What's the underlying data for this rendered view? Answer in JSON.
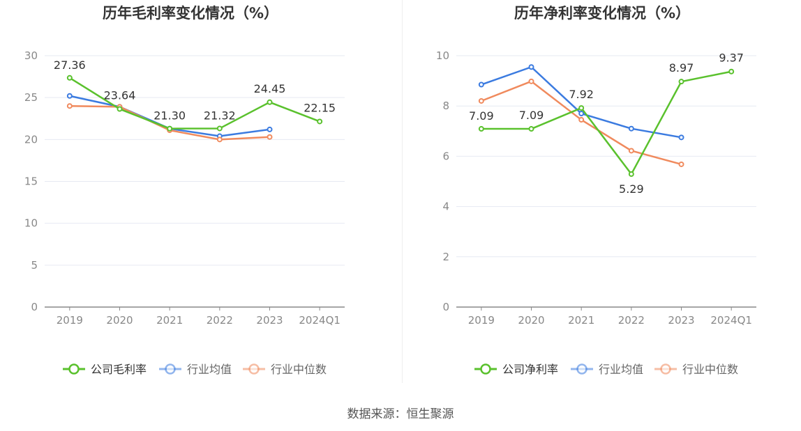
{
  "colors": {
    "company": "#5ac12d",
    "industry_avg": "#3b7be0",
    "industry_median": "#f08a5d",
    "grid": "#e6e9f2",
    "axis": "#888888",
    "tick_text": "#888888",
    "title_text": "#333333",
    "label_text": "#333333"
  },
  "source_text": "数据来源：恒生聚源",
  "chart_data": [
    {
      "type": "line",
      "title": "历年毛利率变化情况（%）",
      "categories": [
        "2019",
        "2020",
        "2021",
        "2022",
        "2023",
        "2024Q1"
      ],
      "ylim": [
        0,
        30
      ],
      "yticks": [
        0,
        5,
        10,
        15,
        20,
        25,
        30
      ],
      "grid": true,
      "legend_position": "bottom",
      "series": [
        {
          "name": "公司毛利率",
          "values": [
            27.36,
            23.64,
            21.3,
            21.32,
            24.45,
            22.15
          ],
          "labels": [
            "27.36",
            "23.64",
            "21.30",
            "21.32",
            "24.45",
            "22.15"
          ],
          "color_key": "company"
        },
        {
          "name": "行业均值",
          "values": [
            25.2,
            23.9,
            21.3,
            20.4,
            21.2,
            null
          ],
          "color_key": "industry_avg"
        },
        {
          "name": "行业中位数",
          "values": [
            24.0,
            23.9,
            21.1,
            20.0,
            20.3,
            null
          ],
          "color_key": "industry_median"
        }
      ]
    },
    {
      "type": "line",
      "title": "历年净利率变化情况（%）",
      "categories": [
        "2019",
        "2020",
        "2021",
        "2022",
        "2023",
        "2024Q1"
      ],
      "ylim": [
        0,
        10
      ],
      "yticks": [
        0,
        2,
        4,
        6,
        8,
        10
      ],
      "grid": true,
      "legend_position": "bottom",
      "series": [
        {
          "name": "公司净利率",
          "values": [
            7.09,
            7.09,
            7.92,
            5.29,
            8.97,
            9.37
          ],
          "labels": [
            "7.09",
            "7.09",
            "7.92",
            "5.29",
            "8.97",
            "9.37"
          ],
          "color_key": "company"
        },
        {
          "name": "行业均值",
          "values": [
            8.85,
            9.55,
            7.7,
            7.1,
            6.75,
            null
          ],
          "color_key": "industry_avg"
        },
        {
          "name": "行业中位数",
          "values": [
            8.2,
            8.98,
            7.45,
            6.22,
            5.68,
            null
          ],
          "color_key": "industry_median"
        }
      ]
    }
  ]
}
